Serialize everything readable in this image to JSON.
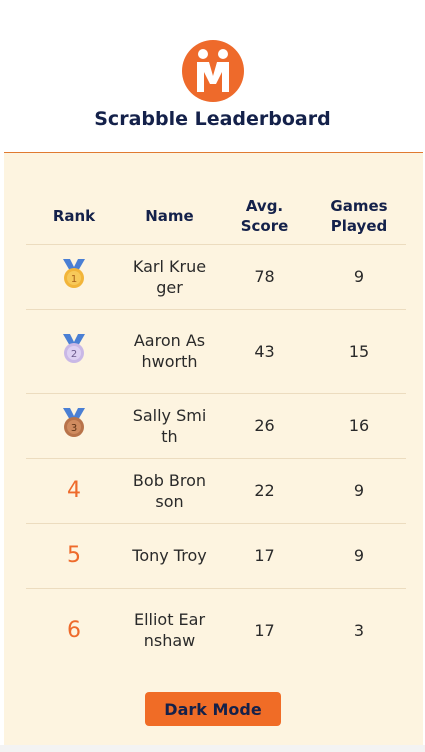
{
  "header": {
    "logo_icon": "people-logo-icon",
    "title": "Scrabble Leaderboard"
  },
  "table": {
    "columns": {
      "rank": "Rank",
      "name": "Name",
      "avg_line1": "Avg.",
      "avg_line2": "Score",
      "games_line1": "Games",
      "games_line2": "Played"
    },
    "rows": [
      {
        "rank": "1",
        "rank_display": "medal",
        "medal_icon": "gold-medal-icon",
        "name": "Karl Krueger",
        "avg": "78",
        "games": "9"
      },
      {
        "rank": "2",
        "rank_display": "medal",
        "medal_icon": "silver-medal-icon",
        "name": "Aaron Ashworth",
        "avg": "43",
        "games": "15"
      },
      {
        "rank": "3",
        "rank_display": "medal",
        "medal_icon": "bronze-medal-icon",
        "name": "Sally Smith",
        "avg": "26",
        "games": "16"
      },
      {
        "rank": "4",
        "rank_display": "number",
        "name": "Bob Bronson",
        "avg": "22",
        "games": "9"
      },
      {
        "rank": "5",
        "rank_display": "number",
        "name": "Tony Troy",
        "avg": "17",
        "games": "9"
      },
      {
        "rank": "6",
        "rank_display": "number",
        "name": "Elliot Earnshaw",
        "avg": "17",
        "games": "3"
      }
    ]
  },
  "dark_mode_button": "Dark Mode",
  "colors": {
    "accent": "#f06c26",
    "navy": "#14214a",
    "panel": "#fdf4e0"
  }
}
